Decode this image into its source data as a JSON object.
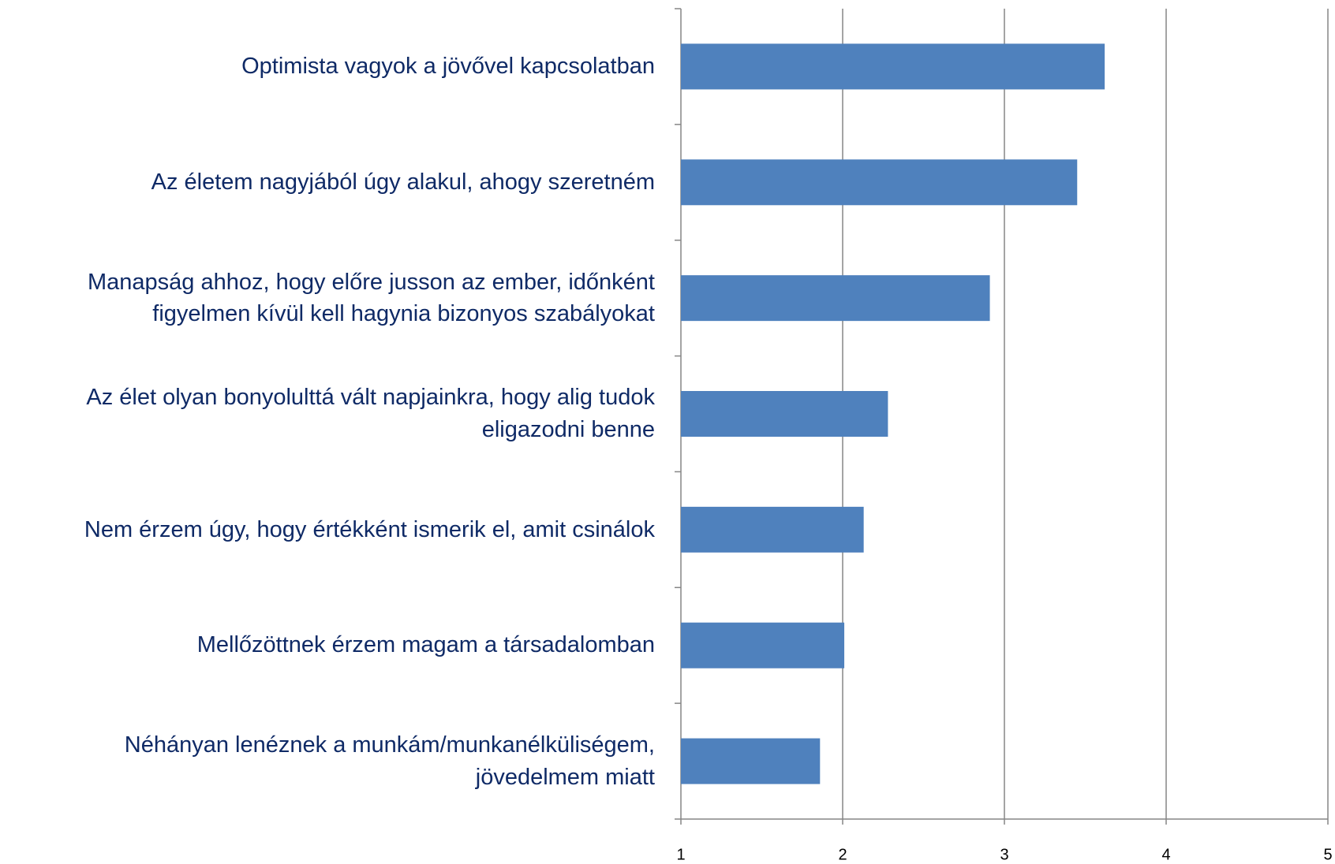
{
  "chart_data": {
    "type": "bar",
    "orientation": "horizontal",
    "categories": [
      "Optimista vagyok a jövővel kapcsolatban",
      "Az életem nagyjából úgy alakul, ahogy szeretném",
      "Manapság ahhoz, hogy előre jusson az ember, időnként figyelmen kívül kell hagynia bizonyos szabályokat",
      "Az élet olyan bonyolulttá vált napjainkra, hogy alig tudok eligazodni benne",
      "Nem érzem úgy, hogy értékként ismerik el, amit csinálok",
      "Mellőzöttnek érzem magam a társadalomban",
      "Néhányan lenéznek a munkám/munkanélküliségem, jövedelmem miatt"
    ],
    "values": [
      3.62,
      3.45,
      2.91,
      2.28,
      2.13,
      2.01,
      1.86
    ],
    "color": "#4f81bd",
    "xlim": [
      1,
      5
    ],
    "xticks": [
      1,
      2,
      3,
      4,
      5
    ],
    "grid": true
  }
}
